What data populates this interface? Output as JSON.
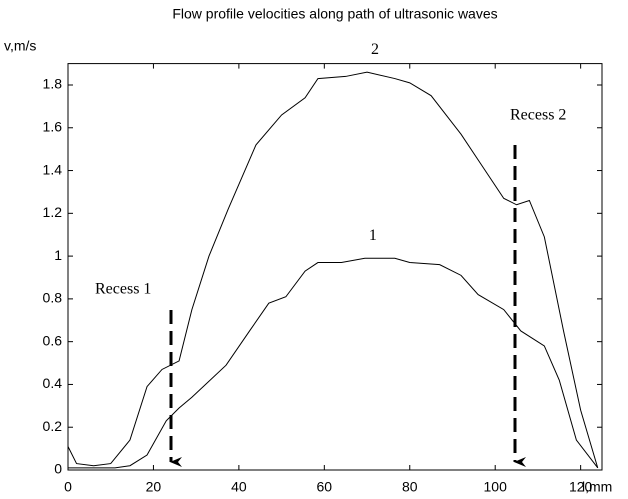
{
  "chart_data": {
    "type": "line",
    "title": "Flow profile velocities along path of ultrasonic waves",
    "y_label": "v,m/s",
    "x_label": "l,mm",
    "annotations": [
      "Recess 1",
      "Recess 2"
    ],
    "series": [
      {
        "name": "1",
        "color": "#000000",
        "x": [
          0,
          11,
          14.5,
          18.5,
          23,
          26,
          29,
          37,
          42.5,
          47,
          51,
          55.5,
          58.5,
          64,
          69.5,
          76.5,
          80,
          87,
          92,
          96,
          102,
          106,
          111.5,
          115,
          119,
          124
        ],
        "values": [
          0.01,
          0.01,
          0.02,
          0.07,
          0.23,
          0.29,
          0.34,
          0.49,
          0.65,
          0.78,
          0.81,
          0.93,
          0.97,
          0.97,
          0.99,
          0.99,
          0.97,
          0.96,
          0.91,
          0.82,
          0.75,
          0.65,
          0.58,
          0.42,
          0.14,
          0.01
        ]
      },
      {
        "name": "2",
        "color": "#000000",
        "x": [
          0,
          2,
          6,
          10,
          14.5,
          18.5,
          22,
          26,
          29,
          33,
          37.5,
          44,
          50,
          55.5,
          58.5,
          65,
          70,
          76.5,
          80,
          85,
          92,
          96,
          102,
          105,
          108,
          111.5,
          116,
          120,
          124
        ],
        "values": [
          0.11,
          0.03,
          0.02,
          0.03,
          0.14,
          0.39,
          0.47,
          0.51,
          0.75,
          1.0,
          1.22,
          1.52,
          1.66,
          1.74,
          1.83,
          1.84,
          1.86,
          1.83,
          1.81,
          1.75,
          1.57,
          1.45,
          1.27,
          1.24,
          1.26,
          1.09,
          0.65,
          0.28,
          0.01
        ]
      }
    ],
    "xlim": [
      0,
      125
    ],
    "xticks": [
      0,
      20,
      40,
      60,
      80,
      100,
      120
    ],
    "ylim": [
      0,
      1.9
    ],
    "yticks": [
      0,
      0.2,
      0.4,
      0.6,
      0.8,
      1,
      1.2,
      1.4,
      1.6,
      1.8
    ],
    "grid": false
  }
}
